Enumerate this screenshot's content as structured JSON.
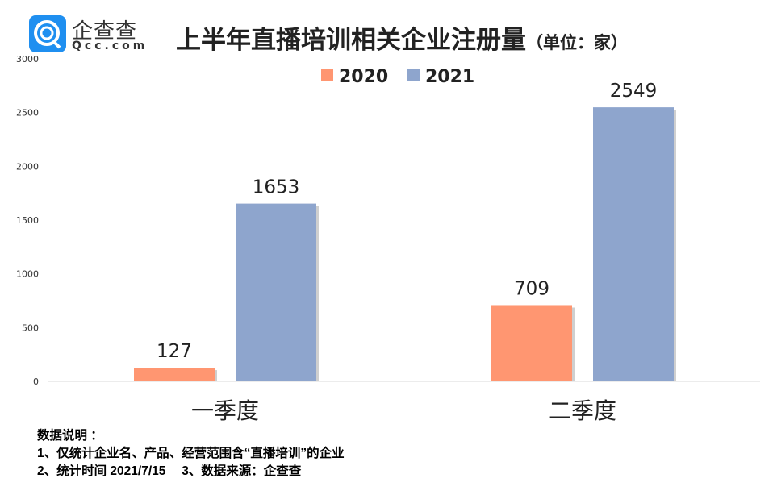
{
  "logo": {
    "name_cn": "企查查",
    "name_en": "Qcc.com"
  },
  "title": "上半年直播培训相关企业注册量",
  "unit": "（单位：家）",
  "notes": {
    "heading": "数据说明 ：",
    "line1": "1、仅统计企业名、产品、经营范围含“直播培训”的企业",
    "line2": "2、统计时间 2021/7/15　 3、数据来源：企查查"
  },
  "chart_data": {
    "type": "bar",
    "categories": [
      "一季度",
      "二季度"
    ],
    "series": [
      {
        "name": "2020",
        "values": [
          127,
          709
        ],
        "color": "#ff9671"
      },
      {
        "name": "2021",
        "values": [
          1653,
          2549
        ],
        "color": "#8ea5cd"
      }
    ],
    "ylim": [
      0,
      3000
    ],
    "yticks": [
      0,
      500,
      1000,
      1500,
      2000,
      2500,
      3000
    ],
    "legend": "top-center",
    "grid": false,
    "data_labels": true
  }
}
